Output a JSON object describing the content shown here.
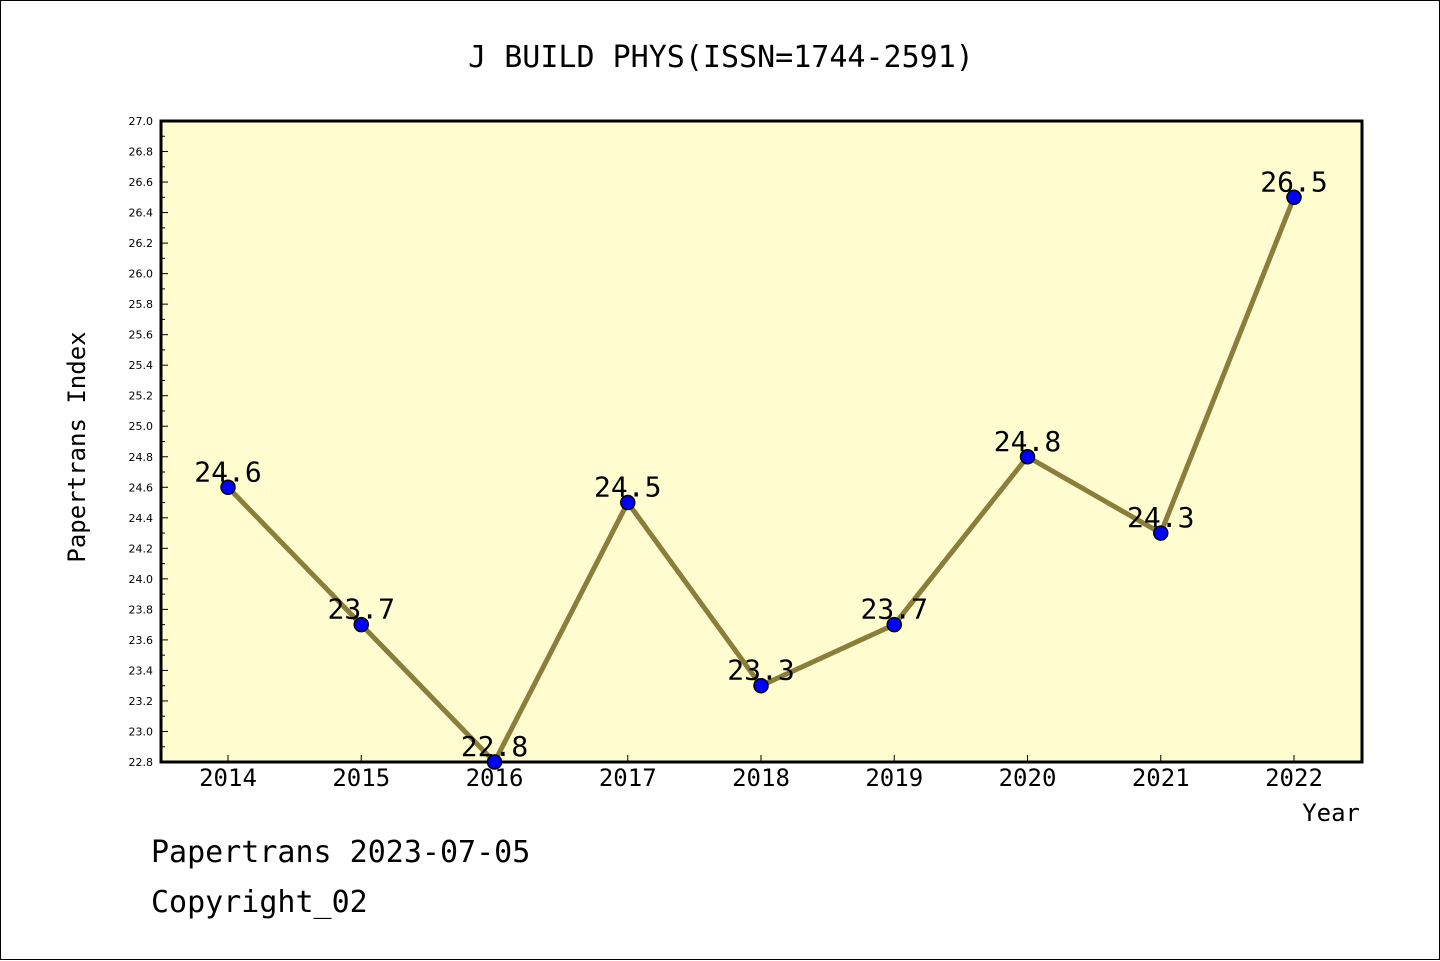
{
  "chart_data": {
    "type": "line",
    "title": "J BUILD PHYS(ISSN=1744-2591)",
    "xlabel": "Year",
    "ylabel": "Papertrans Index",
    "categories": [
      "2014",
      "2015",
      "2016",
      "2017",
      "2018",
      "2019",
      "2020",
      "2021",
      "2022"
    ],
    "values": [
      24.6,
      23.7,
      22.8,
      24.5,
      23.3,
      23.7,
      24.8,
      24.3,
      26.5
    ],
    "data_labels": [
      "24.6",
      "23.7",
      "22.8",
      "24.5",
      "23.3",
      "23.7",
      "24.8",
      "24.3",
      "26.5"
    ],
    "ylim": [
      22.8,
      27.0
    ],
    "yticks": [
      "22.8",
      "23.0",
      "23.2",
      "23.4",
      "23.6",
      "23.8",
      "24.0",
      "24.2",
      "24.4",
      "24.6",
      "24.8",
      "25.0",
      "25.2",
      "25.4",
      "25.6",
      "25.8",
      "26.0",
      "26.2",
      "26.4",
      "26.6",
      "26.8",
      "27.0"
    ],
    "grid": false,
    "colors": {
      "plot_background": "#FFFDD0",
      "line": "#8B7D3A",
      "marker": "#0000FF"
    }
  },
  "footer": {
    "line1": "Papertrans 2023-07-05",
    "line2": "Copyright_02"
  }
}
